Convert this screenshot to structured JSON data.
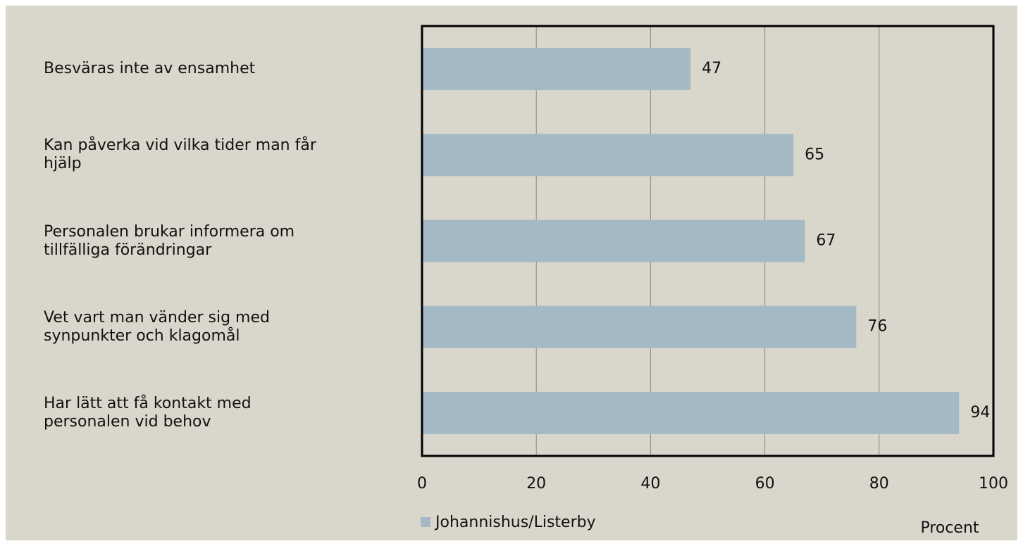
{
  "chart_data": {
    "type": "bar",
    "orientation": "horizontal",
    "categories": [
      "Besväras inte av ensamhet",
      "Kan påverka vid vilka tider man får hjälp",
      "Personalen brukar informera om tillfälliga förändringar",
      "Vet vart man vänder sig med synpunkter och klagomål",
      "Har lätt att få kontakt med personalen vid behov"
    ],
    "series": [
      {
        "name": "Johannishus/Listerby",
        "color": "#a5b9c5",
        "values": [
          47,
          65,
          67,
          76,
          94
        ]
      }
    ],
    "x_label": "Procent",
    "xlim": [
      0,
      100
    ],
    "xticks": [
      0,
      20,
      40,
      60,
      80,
      100
    ],
    "grid": true,
    "legend": "bottom-left"
  }
}
